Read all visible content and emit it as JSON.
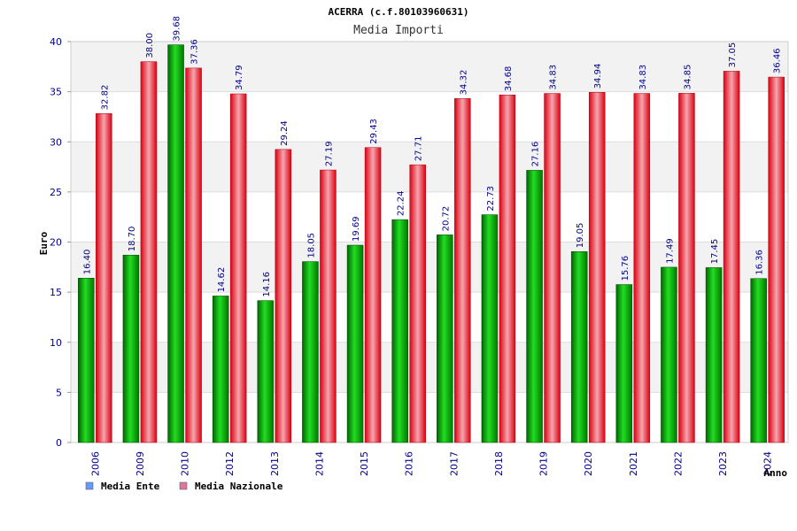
{
  "chart_data": {
    "type": "bar",
    "title": "ACERRA (c.f.80103960631)",
    "subtitle": "Media Importi",
    "ylabel": "Euro",
    "xlabel": "Anno",
    "ylim": [
      0,
      40
    ],
    "yticks": [
      0,
      5,
      10,
      15,
      20,
      25,
      30,
      35,
      40
    ],
    "grid": true,
    "legend": "bottom-left",
    "categories": [
      "2006",
      "2009",
      "2010",
      "2012",
      "2013",
      "2014",
      "2015",
      "2016",
      "2017",
      "2018",
      "2019",
      "2020",
      "2021",
      "2022",
      "2023",
      "2024"
    ],
    "series": [
      {
        "name": "Media Ente",
        "color": "#00aa00",
        "legend_color": "#6699ff",
        "values": [
          16.4,
          18.7,
          39.68,
          14.62,
          14.16,
          18.05,
          19.69,
          22.24,
          20.72,
          22.73,
          27.16,
          19.05,
          15.76,
          17.49,
          17.45,
          16.36
        ],
        "labels": [
          "16.40",
          "18.70",
          "39.68",
          "14.62",
          "14.16",
          "18.05",
          "19.69",
          "22.24",
          "20.72",
          "22.73",
          "27.16",
          "19.05",
          "15.76",
          "17.49",
          "17.45",
          "16.36"
        ]
      },
      {
        "name": "Media Nazionale",
        "color": "#ee1122",
        "legend_color": "#dd7799",
        "values": [
          32.82,
          38.0,
          37.36,
          34.79,
          29.24,
          27.19,
          29.43,
          27.71,
          34.32,
          34.68,
          34.83,
          34.94,
          34.83,
          34.85,
          37.05,
          36.46
        ],
        "labels": [
          "32.82",
          "38.00",
          "37.36",
          "34.79",
          "29.24",
          "27.19",
          "29.43",
          "27.71",
          "34.32",
          "34.68",
          "34.83",
          "34.94",
          "34.83",
          "34.85",
          "37.05",
          "36.46"
        ]
      }
    ]
  }
}
